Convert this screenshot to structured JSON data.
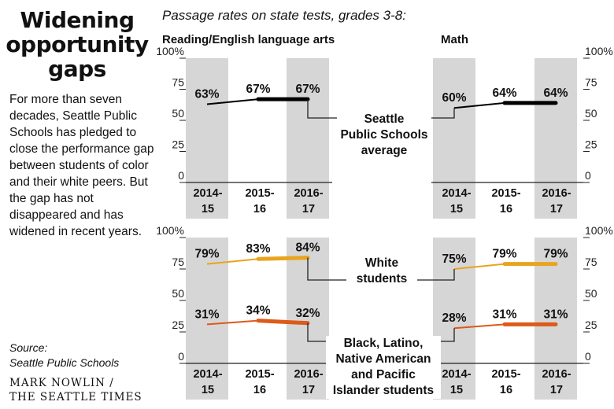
{
  "headline": "Widening opportunity gaps",
  "intro": "For more than seven decades, Seattle Public Schools has pledged to close the performance gap between students of color and their white peers. But the gap has not disappeared and has widened in recent years.",
  "source_label": "Source:",
  "source": "Seattle Public Schools",
  "credit_line1": "MARK NOWLIN /",
  "credit_line2": "THE SEATTLE TIMES",
  "colors": {
    "seattle_average": "#000000",
    "white_students": "#e8a41f",
    "black_latino_students": "#dc5a1a",
    "column_shade": "#d6d6d6"
  },
  "chart_data": {
    "type": "line",
    "title": "Passage rates on state tests, grades 3-8:",
    "categories": [
      [
        "2014-",
        "15"
      ],
      [
        "2015-",
        "16"
      ],
      [
        "2016-",
        "17"
      ]
    ],
    "y_ticks": [
      "0",
      "25",
      "50",
      "75",
      "100%"
    ],
    "ylim": [
      0,
      100
    ],
    "subjects": [
      "Reading/English language arts",
      "Math"
    ],
    "series_labels": {
      "seattle_average": [
        "Seattle",
        "Public Schools",
        "average"
      ],
      "white_students": [
        "White",
        "students"
      ],
      "black_latino_students": [
        "Black, Latino,",
        "Native American",
        "and Pacific",
        "Islander students"
      ]
    },
    "panels": [
      {
        "subject": "Reading/English language arts",
        "series": [
          {
            "key": "seattle_average",
            "values": [
              63,
              67,
              67
            ],
            "labels": [
              "63%",
              "67%",
              "67%"
            ]
          }
        ]
      },
      {
        "subject": "Math",
        "series": [
          {
            "key": "seattle_average",
            "values": [
              60,
              64,
              64
            ],
            "labels": [
              "60%",
              "64%",
              "64%"
            ]
          }
        ]
      },
      {
        "subject": "Reading/English language arts",
        "series": [
          {
            "key": "white_students",
            "values": [
              79,
              83,
              84
            ],
            "labels": [
              "79%",
              "83%",
              "84%"
            ]
          },
          {
            "key": "black_latino_students",
            "values": [
              31,
              34,
              32
            ],
            "labels": [
              "31%",
              "34%",
              "32%"
            ]
          }
        ]
      },
      {
        "subject": "Math",
        "series": [
          {
            "key": "white_students",
            "values": [
              75,
              79,
              79
            ],
            "labels": [
              "75%",
              "79%",
              "79%"
            ]
          },
          {
            "key": "black_latino_students",
            "values": [
              28,
              31,
              31
            ],
            "labels": [
              "28%",
              "31%",
              "31%"
            ]
          }
        ]
      }
    ]
  }
}
